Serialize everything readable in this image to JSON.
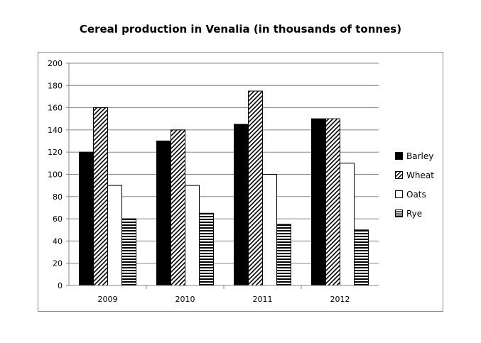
{
  "chart_data": {
    "type": "bar",
    "title": "Cereal production in Venalia (in thousands of tonnes)",
    "categories": [
      "2009",
      "2010",
      "2011",
      "2012"
    ],
    "series": [
      {
        "name": "Barley",
        "values": [
          120,
          130,
          145,
          150
        ],
        "fill": "solid-black"
      },
      {
        "name": "Wheat",
        "values": [
          160,
          140,
          175,
          150
        ],
        "fill": "diagonal-hatch"
      },
      {
        "name": "Oats",
        "values": [
          90,
          90,
          100,
          110
        ],
        "fill": "white"
      },
      {
        "name": "Rye",
        "values": [
          60,
          65,
          55,
          50
        ],
        "fill": "horizontal-hatch"
      }
    ],
    "yticks": [
      "0",
      "20",
      "40",
      "60",
      "80",
      "100",
      "120",
      "140",
      "160",
      "180",
      "200"
    ],
    "ylim": [
      0,
      200
    ],
    "grid": true,
    "legend_position": "right",
    "colors": {
      "bar_outline": "#000000",
      "gridline": "#868686",
      "frame": "#8c8c8c"
    }
  }
}
